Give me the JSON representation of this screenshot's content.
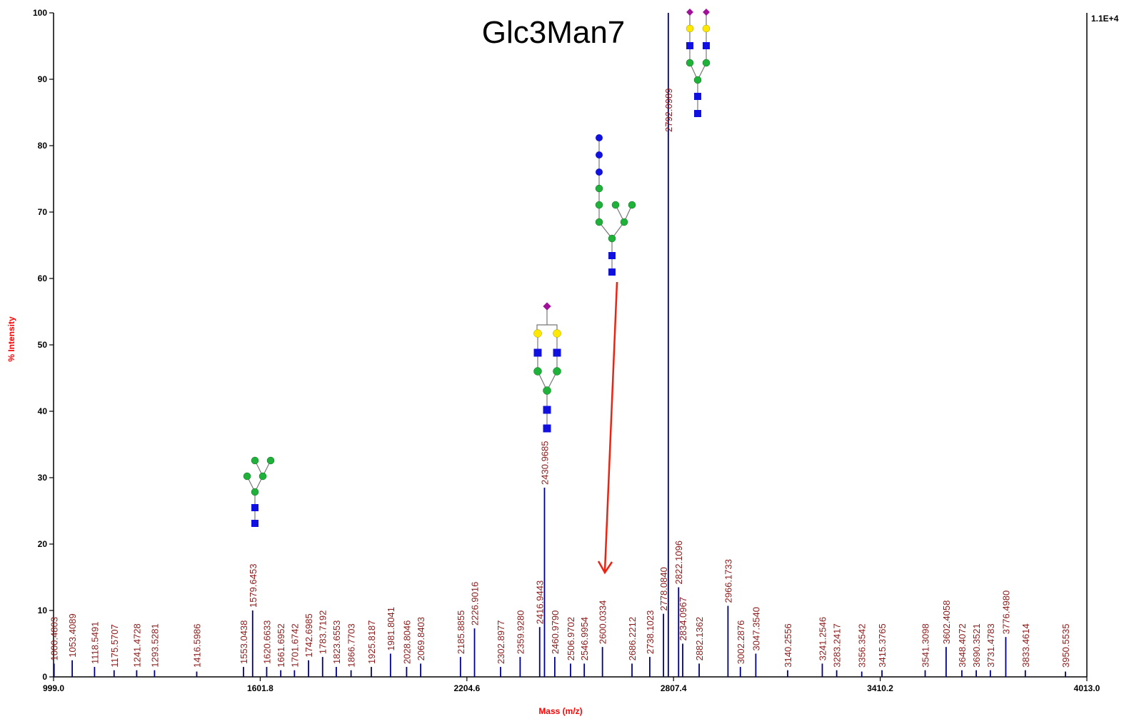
{
  "chart_data": {
    "type": "spectrum",
    "title": "Glc3Man7",
    "x_label": "Mass (m/z)",
    "y_label": "% Intensity",
    "scale_label": "1.1E+4",
    "color": "#000080",
    "xlim": [
      999.0,
      4013.0
    ],
    "xticks": [
      {
        "value": 999.0,
        "label": "999.0"
      },
      {
        "value": 1601.8,
        "label": "1601.8"
      },
      {
        "value": 2204.6,
        "label": "2204.6"
      },
      {
        "value": 2807.4,
        "label": "2807.4"
      },
      {
        "value": 3410.2,
        "label": "3410.2"
      },
      {
        "value": 4013.0,
        "label": "4013.0"
      }
    ],
    "ylim": [
      0,
      100
    ],
    "yticks": [
      0,
      10,
      20,
      30,
      40,
      50,
      60,
      70,
      80,
      90,
      100
    ],
    "x": [
      1000.4803,
      1053.4089,
      1118.5491,
      1175.5707,
      1241.4728,
      1293.5281,
      1416.5986,
      1553.0438,
      1579.6453,
      1620.6633,
      1661.6952,
      1701.6742,
      1742.6985,
      1783.7192,
      1823.6553,
      1866.7703,
      1925.8187,
      1981.8041,
      2028.8046,
      2069.8403,
      2185.8855,
      2226.9016,
      2302.8977,
      2359.928,
      2416.9443,
      2430.9685,
      2460.979,
      2506.9702,
      2546.9954,
      2600.0334,
      2686.2212,
      2738.1023,
      2778.084,
      2792.0989,
      2822.1096,
      2834.0967,
      2882.1362,
      2966.1733,
      3002.2876,
      3047.354,
      3140.2556,
      3241.2546,
      3283.2417,
      3356.3542,
      3415.3765,
      3541.3098,
      3602.4058,
      3648.4072,
      3690.3521,
      3731.4783,
      3776.498,
      3833.4614,
      3950.5535
    ],
    "x_labels": [
      "1000.4803",
      "1053.4089",
      "1118.5491",
      "1175.5707",
      "1241.4728",
      "1293.5281",
      "1416.5986",
      "1553.0438",
      "1579.6453",
      "1620.6633",
      "1661.6952",
      "1701.6742",
      "1742.6985",
      "1783.7192",
      "1823.6553",
      "1866.7703",
      "1925.8187",
      "1981.8041",
      "2028.8046",
      "2069.8403",
      "2185.8855",
      "2226.9016",
      "2302.8977",
      "2359.9280",
      "2416.9443",
      "2430.9685",
      "2460.9790",
      "2506.9702",
      "2546.9954",
      "2600.0334",
      "2686.2212",
      "2738.1023",
      "2778.0840",
      "2792.0989",
      "2822.1096",
      "2834.0967",
      "2882.1362",
      "2966.1733",
      "3002.2876",
      "3047.3540",
      "3140.2556",
      "3241.2546",
      "3283.2417",
      "3356.3542",
      "3415.3765",
      "3541.3098",
      "3602.4058",
      "3648.4072",
      "3690.3521",
      "3731.4783",
      "3776.4980",
      "3833.4614",
      "3950.5535"
    ],
    "values": [
      2,
      2.5,
      1.5,
      1,
      1,
      1,
      0.8,
      1.5,
      10,
      1.5,
      1,
      1,
      2.5,
      3,
      1.5,
      1,
      1.5,
      3.5,
      1.5,
      2,
      3,
      7.3,
      1.5,
      3,
      7.5,
      28.5,
      3,
      2,
      2,
      4.5,
      2,
      3,
      9.5,
      100,
      13.5,
      5,
      2,
      10.7,
      1.5,
      3.5,
      1,
      2,
      1,
      0.8,
      1,
      1,
      4.5,
      1,
      1,
      1,
      6,
      1,
      0.8
    ]
  }
}
